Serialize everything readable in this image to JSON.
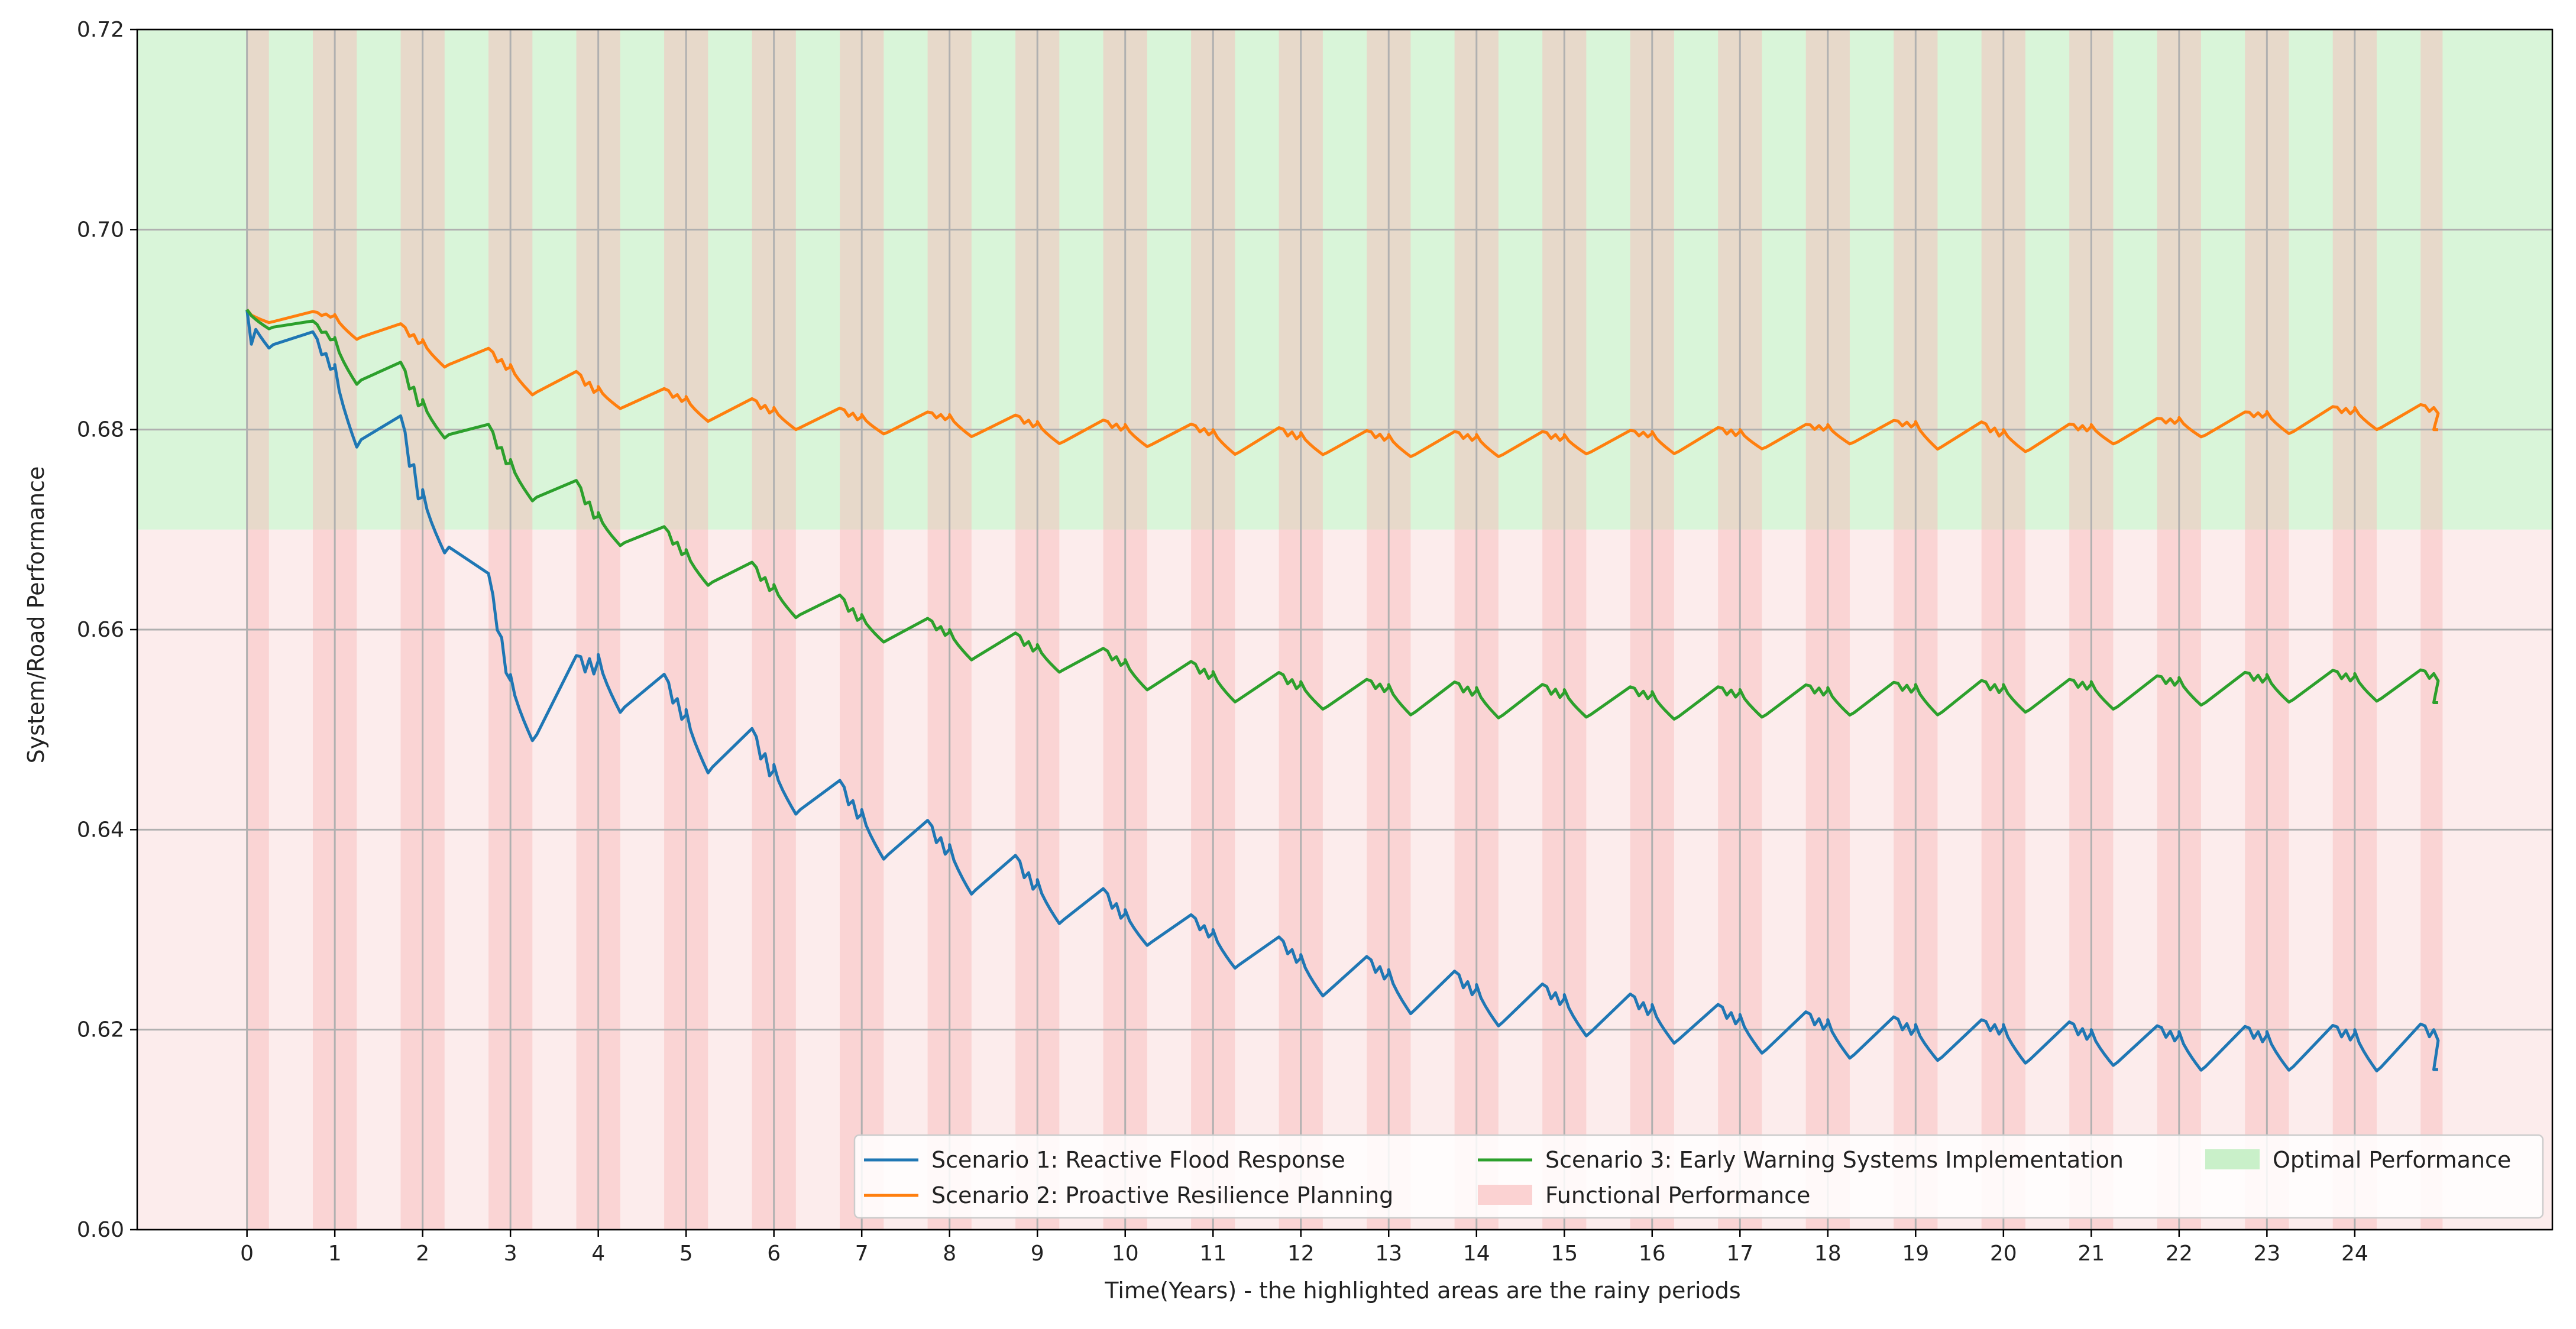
{
  "chart_data": {
    "type": "line",
    "title": "",
    "xlabel": "Time(Years) - the highlighted areas are the rainy periods",
    "ylabel": "System/Road Performance",
    "xlim": [
      -1.25,
      26.25
    ],
    "ylim": [
      0.6,
      0.72
    ],
    "grid": true,
    "x_ticks": [
      0,
      1,
      2,
      3,
      4,
      5,
      6,
      7,
      8,
      9,
      10,
      11,
      12,
      13,
      14,
      15,
      16,
      17,
      18,
      19,
      20,
      21,
      22,
      23,
      24
    ],
    "x_tick_labels": [
      "0",
      "1",
      "2",
      "3",
      "4",
      "5",
      "6",
      "7",
      "8",
      "9",
      "10",
      "11",
      "12",
      "13",
      "14",
      "15",
      "16",
      "17",
      "18",
      "19",
      "20",
      "21",
      "22",
      "23",
      "24"
    ],
    "y_ticks": [
      0.6,
      0.62,
      0.64,
      0.66,
      0.68,
      0.7,
      0.72
    ],
    "y_tick_labels": [
      "0.60",
      "0.62",
      "0.64",
      "0.66",
      "0.68",
      "0.70",
      "0.72"
    ],
    "bands": [
      {
        "name": "Optimal Performance",
        "y_from": 0.67,
        "y_to": 0.72,
        "color": "#d9f5d9"
      },
      {
        "name": "Functional Performance",
        "y_from": 0.6,
        "y_to": 0.67,
        "color": "#fcecec"
      }
    ],
    "rainy_periods": {
      "years": 25,
      "intervals_within_year": [
        [
          0.0,
          0.25
        ],
        [
          0.75,
          1.0
        ]
      ],
      "color": "#f8b8b8",
      "opacity": 0.45
    },
    "series": [
      {
        "name": "Scenario 1: Reactive Flood Response",
        "color": "#1f77b4",
        "year_levels": [
          0.692,
          0.6865,
          0.674,
          0.6555,
          0.6575,
          0.652,
          0.6465,
          0.642,
          0.6385,
          0.635,
          0.632,
          0.63,
          0.6275,
          0.626,
          0.6245,
          0.6235,
          0.6225,
          0.6215,
          0.621,
          0.6205,
          0.6205,
          0.62,
          0.6198,
          0.6198,
          0.62
        ],
        "year_drops": [
          0.007,
          0.015,
          0.0115,
          0.012,
          0.0105,
          0.0115,
          0.009,
          0.009,
          0.009,
          0.008,
          0.0065,
          0.007,
          0.0075,
          0.008,
          0.0075,
          0.0075,
          0.007,
          0.007,
          0.007,
          0.0065,
          0.007,
          0.0065,
          0.007,
          0.007,
          0.0075
        ],
        "final_value": 0.616
      },
      {
        "name": "Scenario 2: Proactive Resilience Planning",
        "color": "#ff7f0e",
        "year_levels": [
          0.6918,
          0.6915,
          0.689,
          0.6865,
          0.6843,
          0.6833,
          0.6822,
          0.6815,
          0.6815,
          0.6808,
          0.6805,
          0.68,
          0.6797,
          0.6795,
          0.6795,
          0.6795,
          0.6798,
          0.68,
          0.6805,
          0.6808,
          0.68,
          0.6805,
          0.6812,
          0.6818,
          0.6822
        ],
        "year_drops": [
          0.002,
          0.0045,
          0.005,
          0.0055,
          0.004,
          0.0045,
          0.004,
          0.0035,
          0.004,
          0.004,
          0.004,
          0.0045,
          0.004,
          0.004,
          0.004,
          0.0035,
          0.004,
          0.0035,
          0.0035,
          0.005,
          0.004,
          0.0035,
          0.0035,
          0.004,
          0.004
        ],
        "final_value": 0.68
      },
      {
        "name": "Scenario 3: Early Warning Systems Implementation",
        "color": "#2ca02c",
        "year_levels": [
          0.692,
          0.6892,
          0.683,
          0.677,
          0.6717,
          0.668,
          0.6645,
          0.6615,
          0.66,
          0.6585,
          0.657,
          0.6558,
          0.6548,
          0.6545,
          0.6542,
          0.654,
          0.6538,
          0.654,
          0.6542,
          0.6545,
          0.6545,
          0.6548,
          0.6552,
          0.6555,
          0.6556
        ],
        "year_drops": [
          0.0035,
          0.0085,
          0.007,
          0.0075,
          0.006,
          0.0065,
          0.006,
          0.005,
          0.0055,
          0.005,
          0.0055,
          0.0055,
          0.005,
          0.0055,
          0.0055,
          0.005,
          0.005,
          0.005,
          0.005,
          0.0055,
          0.005,
          0.005,
          0.005,
          0.005,
          0.005
        ],
        "final_value": 0.6527
      }
    ],
    "legend": {
      "location": "lower right",
      "ncol": 3,
      "entries": [
        {
          "label": "Scenario 1: Reactive Flood Response",
          "kind": "line",
          "color": "#1f77b4"
        },
        {
          "label": "Scenario 2: Proactive Resilience Planning",
          "kind": "line",
          "color": "#ff7f0e"
        },
        {
          "label": "Scenario 3: Early Warning Systems Implementation",
          "kind": "line",
          "color": "#2ca02c"
        },
        {
          "label": "Functional Performance",
          "kind": "patch",
          "color": "#fbd2d2"
        },
        {
          "label": "Optimal Performance",
          "kind": "patch",
          "color": "#c9f0c9"
        }
      ]
    }
  }
}
